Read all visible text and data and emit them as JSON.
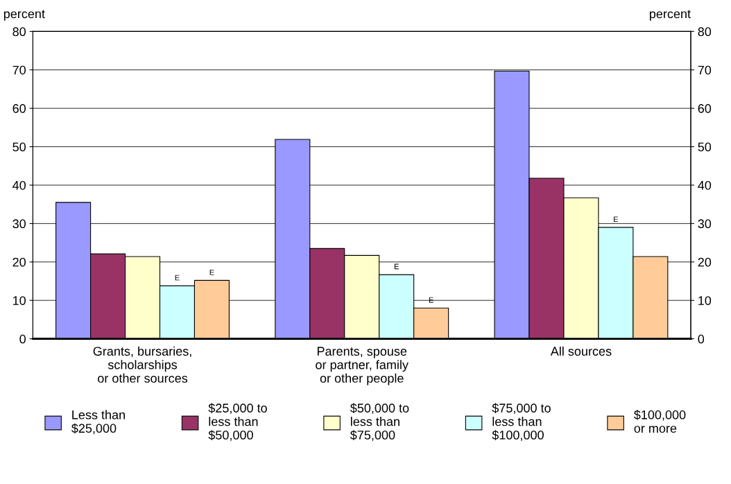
{
  "chart_data": {
    "type": "bar",
    "ylabel": "percent",
    "y2label": "percent",
    "categories": [
      "Grants, bursaries,\nscholarships\nor other sources",
      "Parents, spouse\nor partner, family\nor other people",
      "All sources"
    ],
    "series": [
      {
        "name": "Less than\n$25,000",
        "color": "#9999ff",
        "values": [
          35.5,
          51.9,
          69.7
        ]
      },
      {
        "name": "$25,000 to\nless than\n$50,000",
        "color": "#993366",
        "values": [
          22.1,
          23.5,
          41.8
        ]
      },
      {
        "name": "$50,000 to\nless than\n$75,000",
        "color": "#ffffcc",
        "values": [
          21.4,
          21.7,
          36.7
        ]
      },
      {
        "name": "$75,000 to\nless than\n$100,000",
        "color": "#ccffff",
        "values": [
          13.8,
          16.7,
          29.0
        ],
        "value_labels": [
          "E",
          "E",
          "E"
        ]
      },
      {
        "name": "$100,000\nor more",
        "color": "#ffcc99",
        "values": [
          15.2,
          8.0,
          21.4
        ],
        "value_labels": [
          "E",
          "E",
          null
        ]
      }
    ],
    "ylim": [
      0,
      80
    ],
    "yticks": [
      0,
      10,
      20,
      30,
      40,
      50,
      60,
      70,
      80
    ],
    "y2lim": [
      0,
      80
    ],
    "y2ticks": [
      0,
      10,
      20,
      30,
      40,
      50,
      60,
      70,
      80
    ],
    "grid": "y",
    "legend": "bottom"
  }
}
